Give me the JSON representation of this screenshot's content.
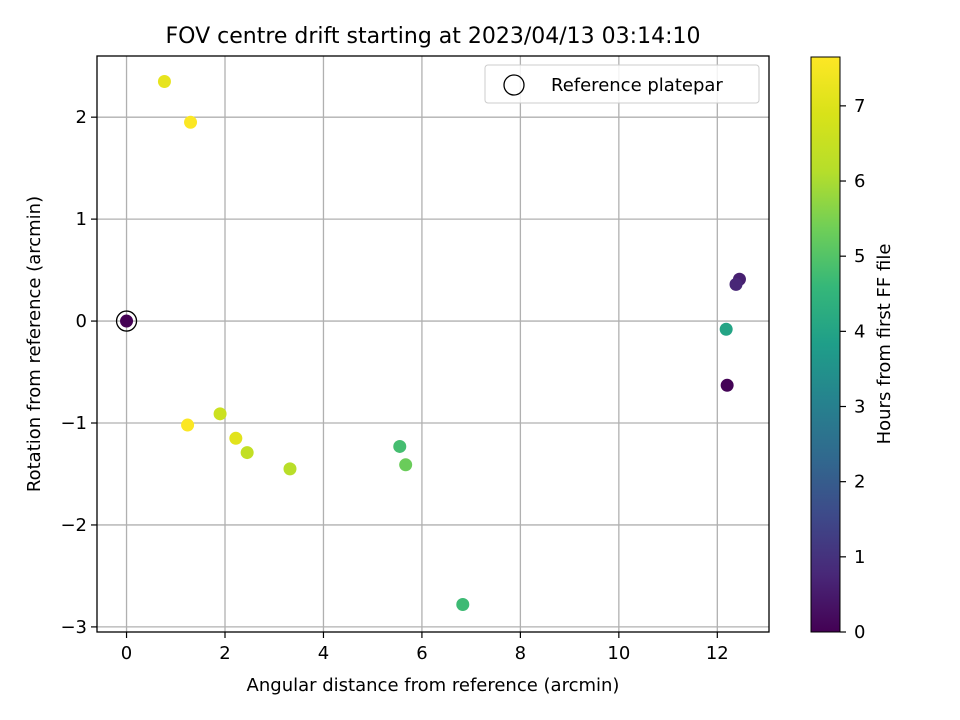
{
  "chart_data": {
    "type": "scatter",
    "title": "FOV centre drift starting at 2023/04/13 03:14:10",
    "xlabel": "Angular distance from reference (arcmin)",
    "ylabel": "Rotation from reference (arcmin)",
    "xlim": [
      -0.6,
      13.05
    ],
    "ylim": [
      -3.05,
      2.6
    ],
    "xticks": [
      0,
      2,
      4,
      6,
      8,
      10,
      12
    ],
    "yticks": [
      -3,
      -2,
      -1,
      0,
      1,
      2
    ],
    "xtick_labels": [
      "0",
      "2",
      "4",
      "6",
      "8",
      "10",
      "12"
    ],
    "ytick_labels": [
      "−3",
      "−2",
      "−1",
      "0",
      "1",
      "2"
    ],
    "grid": true,
    "legend": {
      "placement": "top-right",
      "entries": [
        "Reference platepar"
      ]
    },
    "colorbar": {
      "label": "Hours from first FF file",
      "colormap": "viridis",
      "range": [
        0,
        7.65
      ],
      "ticks": [
        0,
        1,
        2,
        3,
        4,
        5,
        6,
        7
      ],
      "tick_labels": [
        "0",
        "1",
        "2",
        "3",
        "4",
        "5",
        "6",
        "7"
      ]
    },
    "reference_point": {
      "x": 0,
      "y": 0
    },
    "points": [
      {
        "x": 0.0,
        "y": 0.0,
        "hours": 0.0
      },
      {
        "x": 12.2,
        "y": -0.63,
        "hours": 0.05
      },
      {
        "x": 12.45,
        "y": 0.41,
        "hours": 0.6
      },
      {
        "x": 12.38,
        "y": 0.36,
        "hours": 0.75
      },
      {
        "x": 12.18,
        "y": -0.08,
        "hours": 4.0
      },
      {
        "x": 6.83,
        "y": -2.78,
        "hours": 4.7
      },
      {
        "x": 5.55,
        "y": -1.23,
        "hours": 4.8
      },
      {
        "x": 5.67,
        "y": -1.41,
        "hours": 5.3
      },
      {
        "x": 3.32,
        "y": -1.45,
        "hours": 6.2
      },
      {
        "x": 2.45,
        "y": -1.29,
        "hours": 6.4
      },
      {
        "x": 1.9,
        "y": -0.91,
        "hours": 6.6
      },
      {
        "x": 2.22,
        "y": -1.15,
        "hours": 7.1
      },
      {
        "x": 0.77,
        "y": 2.35,
        "hours": 7.2
      },
      {
        "x": 1.3,
        "y": 1.95,
        "hours": 7.6
      },
      {
        "x": 1.24,
        "y": -1.02,
        "hours": 7.6
      }
    ]
  }
}
